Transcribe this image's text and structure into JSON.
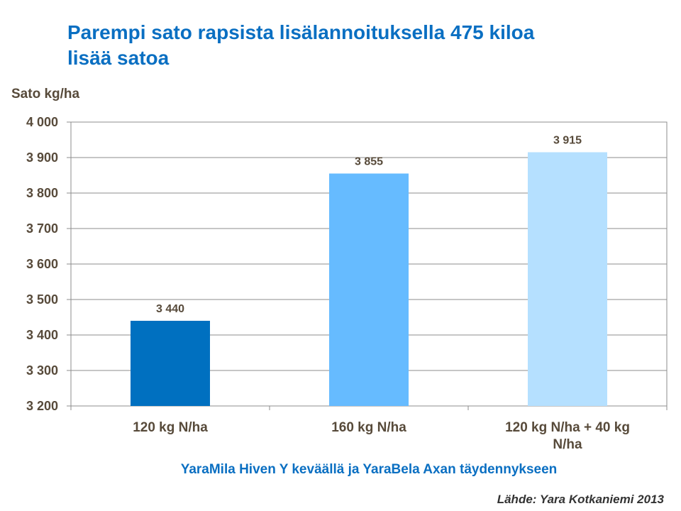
{
  "title_lines": [
    "Parempi sato rapsista lisälannoituksella 475 kiloa",
    "lisää satoa"
  ],
  "source": "Lähde:  Yara Kotkaniemi  2013",
  "chart_data": {
    "type": "bar",
    "ylabel": "Sato kg/ha",
    "xlabel": "YaraMila Hiven Y keväällä ja YaraBela Axan täydennykseen",
    "ylim": [
      3200,
      4000
    ],
    "y_ticks": [
      3200,
      3300,
      3400,
      3500,
      3600,
      3700,
      3800,
      3900,
      4000
    ],
    "y_tick_labels": [
      "3 200",
      "3 300",
      "3 400",
      "3 500",
      "3 600",
      "3 700",
      "3 800",
      "3 900",
      "4 000"
    ],
    "grid": true,
    "categories": [
      [
        "120 kg N/ha"
      ],
      [
        "160 kg N/ha"
      ],
      [
        "120 kg N/ha + 40 kg",
        "N/ha"
      ]
    ],
    "values": [
      3440,
      3855,
      3915
    ],
    "value_labels": [
      "3 440",
      "3 855",
      "3 915"
    ],
    "colors": [
      "#0070c0",
      "#66bbff",
      "#b5e0ff"
    ]
  }
}
